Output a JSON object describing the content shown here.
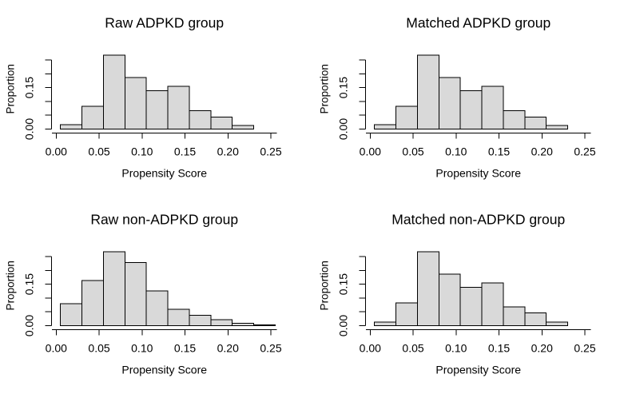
{
  "figure": {
    "background": "#ffffff",
    "text_color": "#000000",
    "bar_fill": "#d9d9d9",
    "bar_stroke": "#000000",
    "axis_color": "#000000"
  },
  "chart_data": [
    {
      "type": "bar",
      "variant": "histogram",
      "title": "Raw ADPKD group",
      "xlabel": "Propensity Score",
      "ylabel": "Proportion",
      "bin_start": 0.005,
      "bin_width": 0.025,
      "proportions": [
        0.016,
        0.082,
        0.268,
        0.186,
        0.139,
        0.155,
        0.066,
        0.044,
        0.013
      ],
      "x_ticks": [
        0.0,
        0.05,
        0.1,
        0.15,
        0.2,
        0.25
      ],
      "x_tick_labels": [
        "0.00",
        "0.05",
        "0.10",
        "0.15",
        "0.20",
        "0.25"
      ],
      "y_ticks": [
        0.0,
        0.05,
        0.1,
        0.15,
        0.2,
        0.25
      ],
      "y_tick_labels": [
        {
          "value": 0.0,
          "label": "0.00"
        },
        {
          "value": 0.15,
          "label": "0.15"
        }
      ],
      "xlim": [
        -0.005,
        0.257
      ],
      "ylim": [
        0.0,
        0.25
      ],
      "grid": false,
      "legend": false
    },
    {
      "type": "bar",
      "variant": "histogram",
      "title": "Matched ADPKD group",
      "xlabel": "Propensity Score",
      "ylabel": "Proportion",
      "bin_start": 0.005,
      "bin_width": 0.025,
      "proportions": [
        0.016,
        0.082,
        0.268,
        0.186,
        0.139,
        0.155,
        0.066,
        0.044,
        0.013
      ],
      "x_ticks": [
        0.0,
        0.05,
        0.1,
        0.15,
        0.2,
        0.25
      ],
      "x_tick_labels": [
        "0.00",
        "0.05",
        "0.10",
        "0.15",
        "0.20",
        "0.25"
      ],
      "y_ticks": [
        0.0,
        0.05,
        0.1,
        0.15,
        0.2,
        0.25
      ],
      "y_tick_labels": [
        {
          "value": 0.0,
          "label": "0.00"
        },
        {
          "value": 0.15,
          "label": "0.15"
        }
      ],
      "xlim": [
        -0.005,
        0.257
      ],
      "ylim": [
        0.0,
        0.25
      ],
      "grid": false,
      "legend": false
    },
    {
      "type": "bar",
      "variant": "histogram",
      "title": "Raw non-ADPKD group",
      "xlabel": "Propensity Score",
      "ylabel": "Proportion",
      "bin_start": 0.005,
      "bin_width": 0.025,
      "proportions": [
        0.079,
        0.164,
        0.268,
        0.228,
        0.126,
        0.059,
        0.037,
        0.022,
        0.008,
        0.003
      ],
      "x_ticks": [
        0.0,
        0.05,
        0.1,
        0.15,
        0.2,
        0.25
      ],
      "x_tick_labels": [
        "0.00",
        "0.05",
        "0.10",
        "0.15",
        "0.20",
        "0.25"
      ],
      "y_ticks": [
        0.0,
        0.05,
        0.1,
        0.15,
        0.2,
        0.25
      ],
      "y_tick_labels": [
        {
          "value": 0.0,
          "label": "0.00"
        },
        {
          "value": 0.15,
          "label": "0.15"
        }
      ],
      "xlim": [
        -0.005,
        0.257
      ],
      "ylim": [
        0.0,
        0.25
      ],
      "grid": false,
      "legend": false
    },
    {
      "type": "bar",
      "variant": "histogram",
      "title": "Matched non-ADPKD group",
      "xlabel": "Propensity Score",
      "ylabel": "Proportion",
      "bin_start": 0.005,
      "bin_width": 0.025,
      "proportions": [
        0.013,
        0.082,
        0.268,
        0.186,
        0.139,
        0.155,
        0.068,
        0.046,
        0.013
      ],
      "x_ticks": [
        0.0,
        0.05,
        0.1,
        0.15,
        0.2,
        0.25
      ],
      "x_tick_labels": [
        "0.00",
        "0.05",
        "0.10",
        "0.15",
        "0.20",
        "0.25"
      ],
      "y_ticks": [
        0.0,
        0.05,
        0.1,
        0.15,
        0.2,
        0.25
      ],
      "y_tick_labels": [
        {
          "value": 0.0,
          "label": "0.00"
        },
        {
          "value": 0.15,
          "label": "0.15"
        }
      ],
      "xlim": [
        -0.005,
        0.257
      ],
      "ylim": [
        0.0,
        0.25
      ],
      "grid": false,
      "legend": false
    }
  ]
}
